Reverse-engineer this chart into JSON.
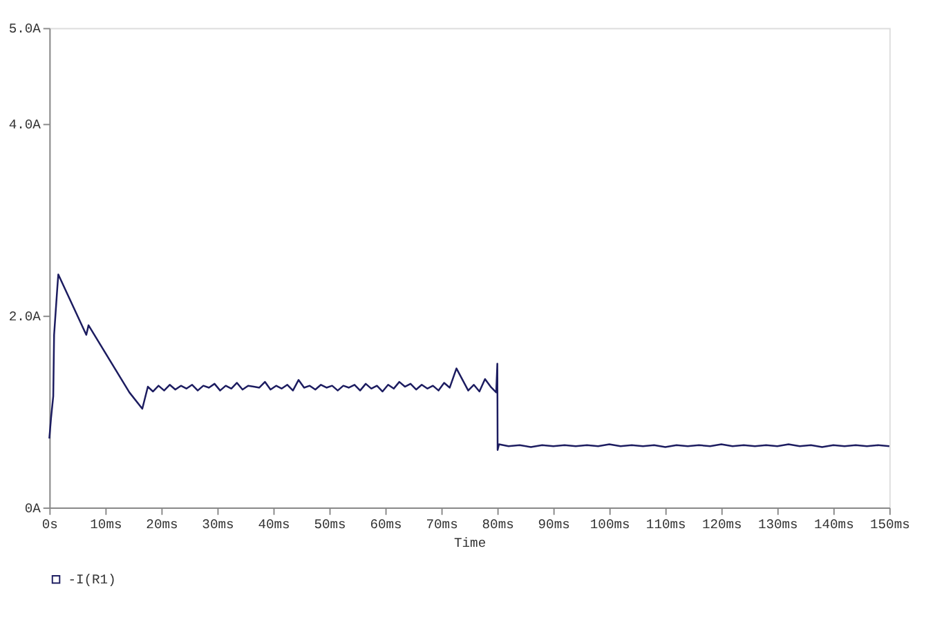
{
  "chart_data": {
    "type": "line",
    "xlabel": "Time",
    "xlim": [
      0,
      150
    ],
    "ylim": [
      0,
      5
    ],
    "xticks": [
      {
        "value": 0,
        "label": "0s"
      },
      {
        "value": 10,
        "label": "10ms"
      },
      {
        "value": 20,
        "label": "20ms"
      },
      {
        "value": 30,
        "label": "30ms"
      },
      {
        "value": 40,
        "label": "40ms"
      },
      {
        "value": 50,
        "label": "50ms"
      },
      {
        "value": 60,
        "label": "60ms"
      },
      {
        "value": 70,
        "label": "70ms"
      },
      {
        "value": 80,
        "label": "80ms"
      },
      {
        "value": 90,
        "label": "90ms"
      },
      {
        "value": 100,
        "label": "100ms"
      },
      {
        "value": 110,
        "label": "110ms"
      },
      {
        "value": 120,
        "label": "120ms"
      },
      {
        "value": 130,
        "label": "130ms"
      },
      {
        "value": 140,
        "label": "140ms"
      },
      {
        "value": 150,
        "label": "150ms"
      }
    ],
    "yticks": [
      {
        "value": 0,
        "label": "0A"
      },
      {
        "value": 2,
        "label": "2.0A"
      },
      {
        "value": 4,
        "label": "4.0A"
      },
      {
        "value": 5,
        "label": "5.0A"
      }
    ],
    "legend": "bottom",
    "grid": false,
    "series": [
      {
        "name": "-I(R1)",
        "color": "#1c1c60",
        "x": [
          0,
          0.3,
          0.7,
          0.85,
          1.4,
          1.6,
          6.6,
          7.0,
          14.3,
          16.6,
          17.6,
          18.5,
          19.5,
          20.5,
          21.5,
          22.5,
          23.5,
          24.5,
          25.5,
          26.5,
          27.5,
          28.5,
          29.5,
          30.5,
          31.5,
          32.5,
          33.5,
          34.5,
          35.5,
          36.5,
          37.5,
          38.5,
          39.5,
          40.5,
          41.5,
          42.5,
          43.5,
          44.5,
          45.5,
          46.5,
          47.5,
          48.5,
          49.5,
          50.5,
          51.5,
          52.5,
          53.5,
          54.5,
          55.5,
          56.5,
          57.5,
          58.5,
          59.5,
          60.5,
          61.5,
          62.5,
          63.5,
          64.5,
          65.5,
          66.5,
          67.5,
          68.5,
          69.5,
          70.5,
          71.5,
          72.7,
          73.8,
          74.8,
          75.8,
          76.8,
          77.8,
          78.8,
          79.8,
          80.0,
          80.05,
          80.3,
          82,
          84,
          86,
          88,
          90,
          92,
          94,
          96,
          98,
          100,
          102,
          104,
          106,
          108,
          110,
          112,
          114,
          116,
          118,
          120,
          122,
          124,
          126,
          128,
          130,
          132,
          134,
          136,
          138,
          140,
          142,
          144,
          146,
          148,
          150
        ],
        "values": [
          0.72,
          0.93,
          1.16,
          1.8,
          2.27,
          2.43,
          1.8,
          1.9,
          1.2,
          1.03,
          1.26,
          1.21,
          1.27,
          1.22,
          1.28,
          1.23,
          1.27,
          1.24,
          1.28,
          1.22,
          1.27,
          1.25,
          1.29,
          1.22,
          1.27,
          1.24,
          1.3,
          1.23,
          1.27,
          1.26,
          1.25,
          1.31,
          1.23,
          1.27,
          1.24,
          1.28,
          1.22,
          1.33,
          1.25,
          1.27,
          1.23,
          1.28,
          1.25,
          1.27,
          1.22,
          1.27,
          1.25,
          1.28,
          1.22,
          1.29,
          1.24,
          1.27,
          1.21,
          1.28,
          1.24,
          1.31,
          1.26,
          1.29,
          1.23,
          1.28,
          1.24,
          1.27,
          1.22,
          1.3,
          1.25,
          1.45,
          1.33,
          1.22,
          1.28,
          1.21,
          1.34,
          1.26,
          1.2,
          1.5,
          0.6,
          0.66,
          0.64,
          0.65,
          0.63,
          0.65,
          0.64,
          0.65,
          0.64,
          0.65,
          0.64,
          0.66,
          0.64,
          0.65,
          0.64,
          0.65,
          0.63,
          0.65,
          0.64,
          0.65,
          0.64,
          0.66,
          0.64,
          0.65,
          0.64,
          0.65,
          0.64,
          0.66,
          0.64,
          0.65,
          0.63,
          0.65,
          0.64,
          0.65,
          0.64,
          0.65,
          0.64
        ]
      }
    ]
  }
}
